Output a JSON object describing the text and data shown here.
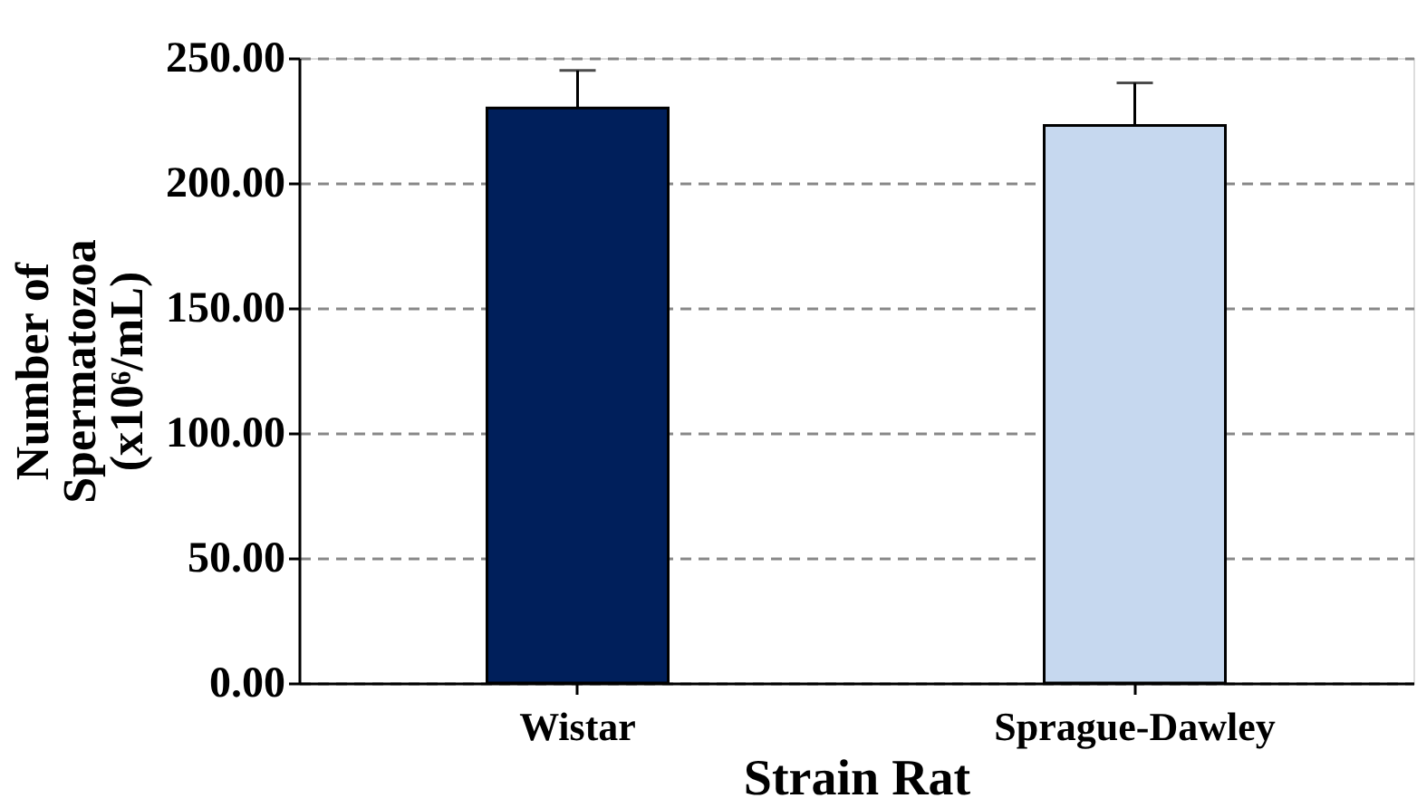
{
  "chart_data": {
    "type": "bar",
    "xlabel": "Strain Rat",
    "ylabel": "Number of\nSpermatozoa\n(x10⁶/mL)",
    "categories": [
      "Wistar",
      "Sprague-Dawley"
    ],
    "values": [
      230,
      223
    ],
    "colors": [
      "#001f5b",
      "#c6d8ef"
    ],
    "errors": [
      15,
      17
    ],
    "ylim": [
      0,
      250
    ],
    "yticks": [
      {
        "value": 0,
        "label": "0.00"
      },
      {
        "value": 50,
        "label": "50.00"
      },
      {
        "value": 100,
        "label": "100.00"
      },
      {
        "value": 150,
        "label": "150.00"
      },
      {
        "value": 200,
        "label": "200.00"
      },
      {
        "value": 250,
        "label": "250.00"
      }
    ],
    "grid": "y"
  }
}
